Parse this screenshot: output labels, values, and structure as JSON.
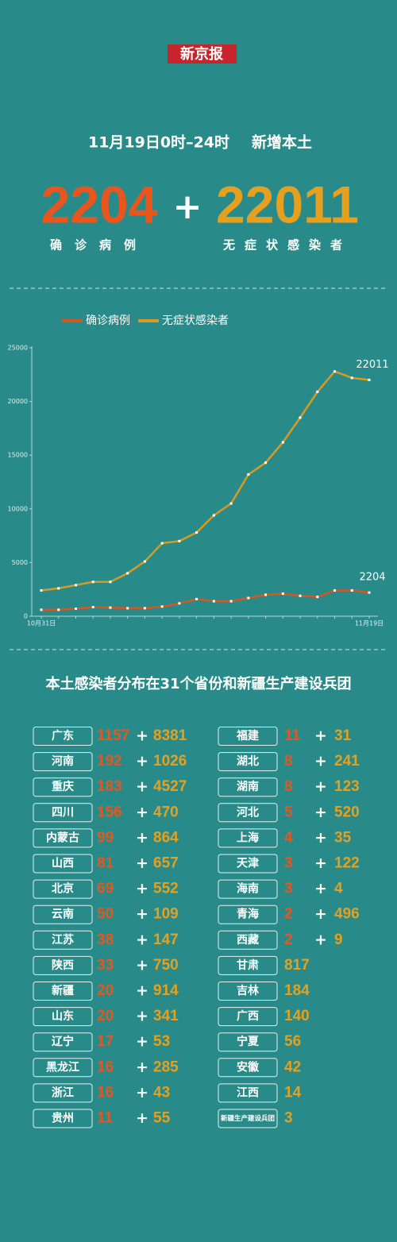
{
  "logo": "新京报",
  "header": {
    "period": "11月19日0时–24时",
    "subtitle": "新增本土",
    "confirmed": 2204,
    "plus": "+",
    "asymptomatic": 22011,
    "confirmed_label": "确诊病例",
    "asymptomatic_label": "无症状感染者"
  },
  "chart_data": {
    "type": "line",
    "legend": "top",
    "categories": [
      "10月31日",
      null,
      null,
      null,
      null,
      null,
      null,
      null,
      null,
      null,
      null,
      null,
      null,
      null,
      null,
      null,
      null,
      null,
      null,
      "11月19日"
    ],
    "series": [
      {
        "name": "确诊病例",
        "color": "#d9561f",
        "values": [
          600,
          600,
          700,
          850,
          800,
          750,
          750,
          900,
          1200,
          1600,
          1400,
          1400,
          1700,
          2000,
          2100,
          1900,
          1800,
          2400,
          2400,
          2204
        ]
      },
      {
        "name": "无症状感染者",
        "color": "#d99a1f",
        "values": [
          2400,
          2600,
          2900,
          3200,
          3200,
          4000,
          5100,
          6800,
          7000,
          7800,
          9400,
          10500,
          13200,
          14300,
          16200,
          18500,
          20900,
          22800,
          22200,
          22011
        ]
      }
    ],
    "ylim": [
      0,
      25000
    ],
    "yticks": [
      0,
      5000,
      10000,
      15000,
      20000,
      25000
    ],
    "grid": false
  },
  "table": {
    "title": "本土感染者分布在31个省份和新疆生产建设兵团",
    "plus": "+",
    "rows": [
      {
        "name": "广东",
        "confirmed": 1157,
        "asymptomatic": 8381
      },
      {
        "name": "河南",
        "confirmed": 192,
        "asymptomatic": 1026
      },
      {
        "name": "重庆",
        "confirmed": 183,
        "asymptomatic": 4527
      },
      {
        "name": "四川",
        "confirmed": 156,
        "asymptomatic": 470
      },
      {
        "name": "内蒙古",
        "confirmed": 99,
        "asymptomatic": 864
      },
      {
        "name": "山西",
        "confirmed": 81,
        "asymptomatic": 657
      },
      {
        "name": "北京",
        "confirmed": 69,
        "asymptomatic": 552
      },
      {
        "name": "云南",
        "confirmed": 50,
        "asymptomatic": 109
      },
      {
        "name": "江苏",
        "confirmed": 38,
        "asymptomatic": 147
      },
      {
        "name": "陕西",
        "confirmed": 33,
        "asymptomatic": 750
      },
      {
        "name": "新疆",
        "confirmed": 20,
        "asymptomatic": 914
      },
      {
        "name": "山东",
        "confirmed": 20,
        "asymptomatic": 341
      },
      {
        "name": "辽宁",
        "confirmed": 17,
        "asymptomatic": 53
      },
      {
        "name": "黑龙江",
        "confirmed": 16,
        "asymptomatic": 285
      },
      {
        "name": "浙江",
        "confirmed": 16,
        "asymptomatic": 43
      },
      {
        "name": "贵州",
        "confirmed": 11,
        "asymptomatic": 55
      },
      {
        "name": "福建",
        "confirmed": 11,
        "asymptomatic": 31
      },
      {
        "name": "湖北",
        "confirmed": 8,
        "asymptomatic": 241
      },
      {
        "name": "湖南",
        "confirmed": 8,
        "asymptomatic": 123
      },
      {
        "name": "河北",
        "confirmed": 5,
        "asymptomatic": 520
      },
      {
        "name": "上海",
        "confirmed": 4,
        "asymptomatic": 35
      },
      {
        "name": "天津",
        "confirmed": 3,
        "asymptomatic": 122
      },
      {
        "name": "海南",
        "confirmed": 3,
        "asymptomatic": 4
      },
      {
        "name": "青海",
        "confirmed": 2,
        "asymptomatic": 496
      },
      {
        "name": "西藏",
        "confirmed": 2,
        "asymptomatic": 9
      },
      {
        "name": "甘肃",
        "asymptomatic": 817
      },
      {
        "name": "吉林",
        "asymptomatic": 184
      },
      {
        "name": "广西",
        "asymptomatic": 140
      },
      {
        "name": "宁夏",
        "asymptomatic": 56
      },
      {
        "name": "安徽",
        "asymptomatic": 42
      },
      {
        "name": "江西",
        "asymptomatic": 14
      },
      {
        "name": "新疆生产建设兵团",
        "asymptomatic": 3
      }
    ]
  }
}
